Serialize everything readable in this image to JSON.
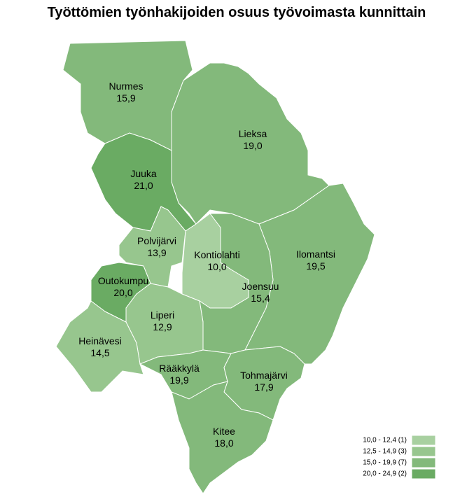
{
  "title": "Työttömien työnhakijoiden osuus työvoimasta kunnittain",
  "regions": [
    {
      "name": "Nurmes",
      "value": "15,9",
      "color": "#83b97b"
    },
    {
      "name": "Lieksa",
      "value": "19,0",
      "color": "#83b97b"
    },
    {
      "name": "Juuka",
      "value": "21,0",
      "color": "#6aab63"
    },
    {
      "name": "Ilomantsi",
      "value": "19,5",
      "color": "#83b97b"
    },
    {
      "name": "Polvijärvi",
      "value": "13,9",
      "color": "#97c68e"
    },
    {
      "name": "Kontiolahti",
      "value": "10,0",
      "color": "#a8d0a0"
    },
    {
      "name": "Joensuu",
      "value": "15,4",
      "color": "#83b97b"
    },
    {
      "name": "Outokumpu",
      "value": "20,0",
      "color": "#6aab63"
    },
    {
      "name": "Liperi",
      "value": "12,9",
      "color": "#97c68e"
    },
    {
      "name": "Heinävesi",
      "value": "14,5",
      "color": "#97c68e"
    },
    {
      "name": "Rääkkylä",
      "value": "19,9",
      "color": "#83b97b"
    },
    {
      "name": "Tohmajärvi",
      "value": "17,9",
      "color": "#83b97b"
    },
    {
      "name": "Kitee",
      "value": "18,0",
      "color": "#83b97b"
    }
  ],
  "legend": [
    {
      "label": "10,0 - 12,4 (1)",
      "color": "#a8d0a0"
    },
    {
      "label": "12,5 - 14,9 (3)",
      "color": "#97c68e"
    },
    {
      "label": "15,0 - 19,9 (7)",
      "color": "#83b97b"
    },
    {
      "label": "20,0 - 24,9 (2)",
      "color": "#6aab63"
    }
  ]
}
